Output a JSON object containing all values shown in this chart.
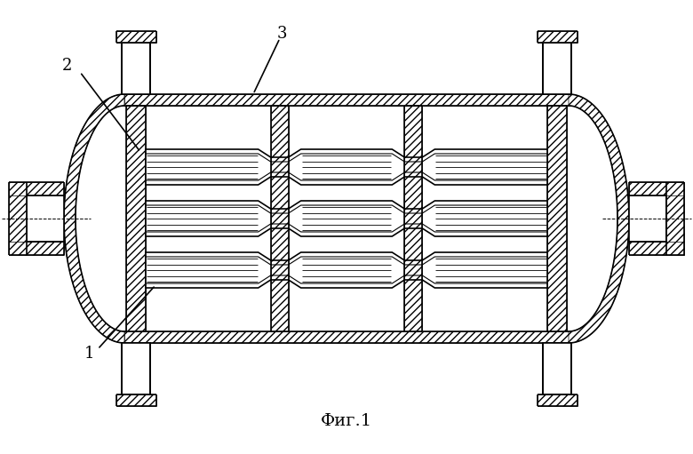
{
  "title": "Фиг.1",
  "background_color": "#ffffff",
  "line_color": "#000000",
  "label_1": "1",
  "label_2": "2",
  "label_3": "3",
  "figsize": [
    7.8,
    5.11
  ],
  "dpi": 100
}
